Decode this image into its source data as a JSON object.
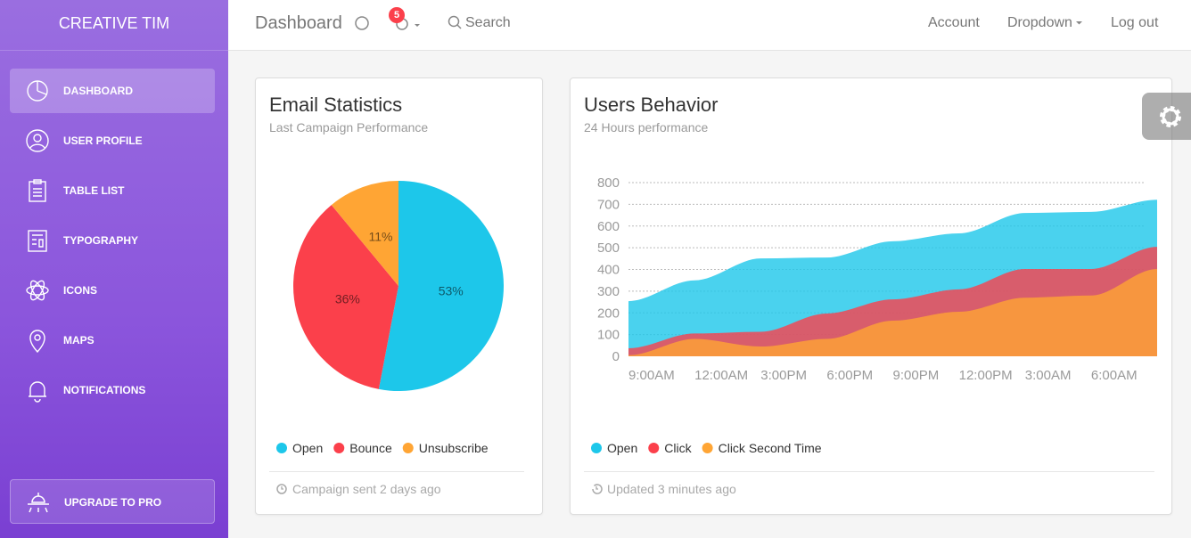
{
  "sidebar": {
    "brand": "CREATIVE TIM",
    "items": [
      "DASHBOARD",
      "USER PROFILE",
      "TABLE LIST",
      "TYPOGRAPHY",
      "ICONS",
      "MAPS",
      "NOTIFICATIONS"
    ],
    "upgrade": "UPGRADE TO PRO"
  },
  "navbar": {
    "title": "Dashboard",
    "badge": 5,
    "search": "Search",
    "links": [
      "Account",
      "Dropdown",
      "Log out"
    ]
  },
  "cards": [
    {
      "title": "Email Statistics",
      "subtitle": "Last Campaign Performance",
      "footer": "Campaign sent 2 days ago"
    },
    {
      "title": "Users Behavior",
      "subtitle": "24 Hours performance",
      "footer": "Updated 3 minutes ago"
    }
  ],
  "chart_data": [
    {
      "type": "pie",
      "categories": [
        "Open",
        "Bounce",
        "Unsubscribe"
      ],
      "values": [
        53,
        36,
        11
      ],
      "value_labels": [
        "53%",
        "36%",
        "11%"
      ],
      "colors": [
        "#1dc7ea",
        "#fb404b",
        "#ffa534"
      ]
    },
    {
      "type": "area",
      "categories": [
        "9:00AM",
        "12:00AM",
        "3:00PM",
        "6:00PM",
        "9:00PM",
        "12:00PM",
        "3:00AM",
        "6:00AM",
        null
      ],
      "series": [
        {
          "name": "Open",
          "color": "#1dc7ea",
          "values": [
            254,
            350,
            451,
            455,
            530,
            566,
            660,
            665,
            721
          ]
        },
        {
          "name": "Click",
          "color": "#fb404b",
          "values": [
            37,
            105,
            113,
            197,
            262,
            308,
            402,
            402,
            504
          ]
        },
        {
          "name": "Click Second Time",
          "color": "#ffa534",
          "values": [
            5,
            80,
            45,
            80,
            164,
            205,
            270,
            280,
            402
          ]
        }
      ],
      "ylim": [
        0,
        800
      ],
      "yticks": [
        0,
        100,
        200,
        300,
        400,
        500,
        600,
        700,
        800
      ],
      "grid": true
    }
  ]
}
